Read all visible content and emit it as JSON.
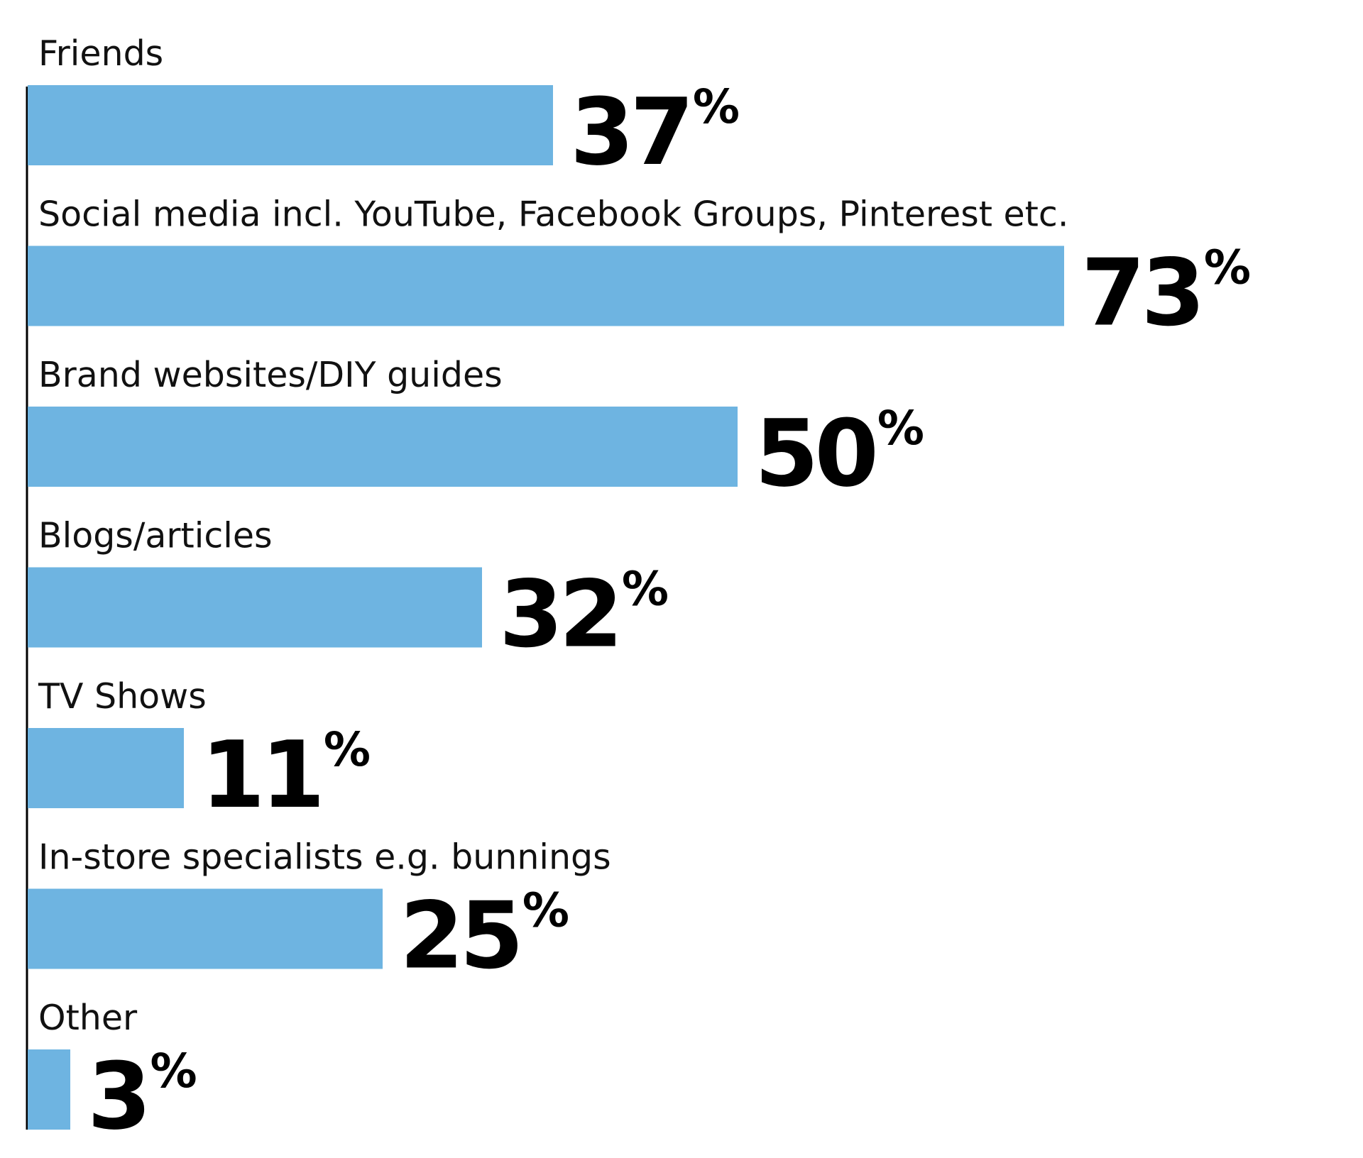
{
  "chart_data": {
    "type": "bar",
    "orientation": "horizontal",
    "categories": [
      "Friends",
      "Social media incl. YouTube, Facebook Groups, Pinterest etc.",
      "Brand websites/DIY guides",
      "Blogs/articles",
      "TV Shows",
      "In-store specialists e.g. bunnings",
      "Other"
    ],
    "values": [
      37,
      73,
      50,
      32,
      11,
      25,
      3
    ],
    "value_suffix": "%",
    "xlim": [
      0,
      100
    ],
    "grid": false,
    "legend": "none",
    "bar_color": "#6eb4e1",
    "axis_color": "#000000",
    "title": "",
    "xlabel": "",
    "ylabel": ""
  }
}
